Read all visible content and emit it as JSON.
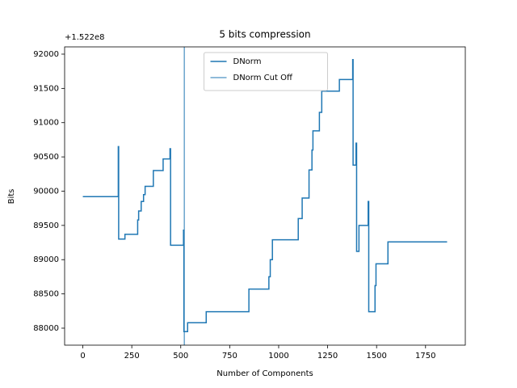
{
  "chart_data": {
    "type": "line",
    "title": "5 bits compression",
    "xlabel": "Number of Components",
    "ylabel": "Bits",
    "y_offset_text": "+1.522e8",
    "xlim": [
      -93,
      1953
    ],
    "ylim": [
      87752,
      92106
    ],
    "xticks": [
      0,
      250,
      500,
      750,
      1000,
      1250,
      1500,
      1750
    ],
    "yticks": [
      88000,
      88500,
      89000,
      89500,
      90000,
      90500,
      91000,
      91500,
      92000
    ],
    "legend": "upper center",
    "series": [
      {
        "name": "DNorm",
        "color": "#1f77b4",
        "x": [
          0,
          181,
          181,
          183,
          183,
          215,
          215,
          280,
          280,
          285,
          285,
          298,
          298,
          310,
          310,
          318,
          318,
          360,
          360,
          410,
          410,
          445,
          445,
          448,
          448,
          514,
          514,
          516,
          516,
          535,
          535,
          630,
          630,
          848,
          848,
          950,
          950,
          957,
          957,
          968,
          968,
          1100,
          1100,
          1120,
          1120,
          1155,
          1155,
          1170,
          1170,
          1175,
          1175,
          1208,
          1208,
          1220,
          1220,
          1310,
          1310,
          1378,
          1378,
          1380,
          1380,
          1395,
          1395,
          1398,
          1398,
          1410,
          1410,
          1457,
          1457,
          1460,
          1460,
          1492,
          1492,
          1497,
          1497,
          1558,
          1558,
          1860
        ],
        "values": [
          89920,
          89920,
          90650,
          90650,
          89300,
          89300,
          89370,
          89370,
          89580,
          89580,
          89710,
          89710,
          89850,
          89850,
          89950,
          89950,
          90070,
          90070,
          90300,
          90300,
          90470,
          90470,
          90620,
          90620,
          89210,
          89210,
          89430,
          89430,
          87950,
          87950,
          88080,
          88080,
          88240,
          88240,
          88570,
          88570,
          88750,
          88750,
          89000,
          89000,
          89290,
          89290,
          89600,
          89600,
          89900,
          89900,
          90310,
          90310,
          90600,
          90600,
          90880,
          90880,
          91150,
          91150,
          91460,
          91460,
          91630,
          91630,
          91920,
          91920,
          90380,
          90380,
          90700,
          90700,
          89120,
          89120,
          89500,
          89500,
          89850,
          89850,
          88240,
          88240,
          88620,
          88620,
          88940,
          88940,
          89260,
          89260
        ]
      },
      {
        "name": "DNorm Cut Off",
        "color": "#1f77b4",
        "kind": "vline",
        "x": [
          518
        ]
      }
    ]
  }
}
